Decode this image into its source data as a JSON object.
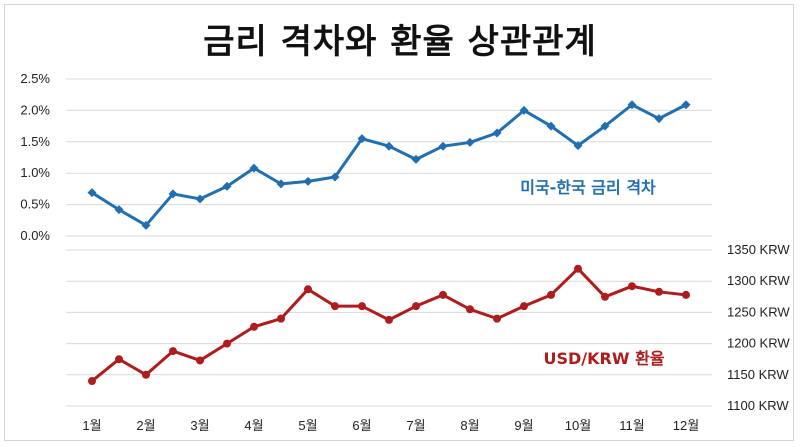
{
  "chart_data": {
    "type": "line",
    "title": "금리 격차와 환율 상관관계",
    "categories": [
      "1월",
      "2월",
      "3월",
      "4월",
      "5월",
      "6월",
      "7월",
      "8월",
      "9월",
      "10월",
      "11월",
      "12월"
    ],
    "x": [
      "1월",
      "",
      "2월",
      "",
      "3월",
      "",
      "4월",
      "",
      "5월",
      "",
      "6월",
      "",
      "7월",
      "",
      "8월",
      "",
      "9월",
      "",
      "10월",
      "",
      "11월",
      "",
      "12월"
    ],
    "left_axis": {
      "ticks": [
        "0.0%",
        "0.5%",
        "1.0%",
        "1.5%",
        "2.0%",
        "2.5%"
      ],
      "ylim": [
        0,
        2.5
      ]
    },
    "right_axis": {
      "ticks": [
        "1100 KRW",
        "1150 KRW",
        "1200 KRW",
        "1250 KRW",
        "1300 KRW",
        "1350 KRW"
      ],
      "ylim": [
        1100,
        1350
      ]
    },
    "grid": true,
    "series": [
      {
        "name": "미국-한국 금리 격차",
        "axis": "left",
        "color": "#1f6fb2",
        "marker": "diamond",
        "values": [
          0.69,
          0.42,
          0.17,
          0.67,
          0.59,
          0.79,
          1.08,
          0.83,
          0.87,
          0.94,
          1.55,
          1.43,
          1.22,
          1.43,
          1.49,
          1.64,
          2.0,
          1.75,
          1.44,
          1.75,
          2.09,
          1.87,
          2.09
        ]
      },
      {
        "name": "USD/KRW 환율",
        "axis": "right",
        "color": "#b01c1c",
        "marker": "circle",
        "values": [
          1140,
          1175,
          1150,
          1188,
          1173,
          1200,
          1227,
          1240,
          1287,
          1260,
          1260,
          1238,
          1260,
          1278,
          1255,
          1240,
          1260,
          1278,
          1320,
          1275,
          1292,
          1283,
          1278
        ]
      }
    ]
  }
}
